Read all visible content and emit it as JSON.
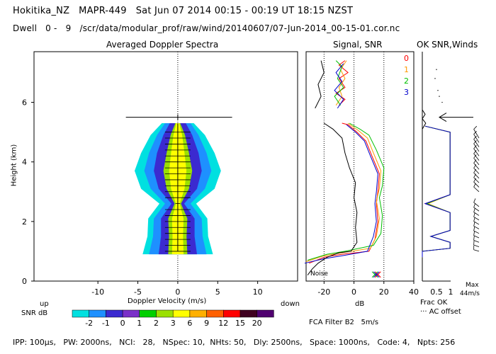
{
  "header": {
    "line1": "Hokitika_NZ   MAPR-449   Sat Jun 07 2014 00:15 - 00:19 UT 18:15 NZST",
    "line2": "Dwell   0 -   9   /scr/data/modular_prof/raw/wind/20140607/07-Jun-2014_00-15-01.cor.nc"
  },
  "footer": {
    "params": "IPP: 100μs,   PW: 2000ns,   NCI:   28,   NSpec: 10,  NHts: 50,   Dly: 2500ns,   Space: 1000ns,   Code: 4,   Npts: 256",
    "filter": "FCA Filter B2   5m/s"
  },
  "chart_data": [
    {
      "type": "heatmap",
      "title": "Averaged Doppler Spectra",
      "xlabel": "Doppler Velocity (m/s)",
      "ylabel": "Height (km)",
      "xlim": [
        -18,
        15
      ],
      "ylim": [
        0,
        7.7
      ],
      "xticks": [
        -10,
        -5,
        0,
        5,
        10
      ],
      "yticks": [
        0,
        2,
        4,
        6
      ],
      "x_side_labels": {
        "left": "up",
        "right": "down"
      },
      "top_height_marker_km": 5.5,
      "spectral_width_profile": [
        {
          "h": 0.9,
          "w": [
            1.2,
            2.4,
            3.6,
            4.4
          ]
        },
        {
          "h": 1.5,
          "w": [
            1.1,
            2.1,
            3.1,
            3.8
          ]
        },
        {
          "h": 2.1,
          "w": [
            1.2,
            2.1,
            3.0,
            3.7
          ]
        },
        {
          "h": 2.6,
          "w": [
            0.4,
            0.8,
            1.6,
            2.3
          ]
        },
        {
          "h": 3.1,
          "w": [
            1.4,
            2.4,
            3.4,
            4.6
          ]
        },
        {
          "h": 3.7,
          "w": [
            1.8,
            3.0,
            4.2,
            5.4
          ]
        },
        {
          "h": 4.3,
          "w": [
            1.4,
            2.6,
            3.6,
            4.6
          ]
        },
        {
          "h": 4.9,
          "w": [
            0.9,
            1.8,
            2.6,
            3.4
          ]
        },
        {
          "h": 5.3,
          "w": [
            0.3,
            1.0,
            1.6,
            2.0
          ]
        }
      ],
      "colorbar": {
        "label": "SNR dB",
        "ticks": [
          "-2",
          "-1",
          "0",
          "1",
          "2",
          "3",
          "6",
          "9",
          "12",
          "15",
          "20"
        ],
        "colors": [
          "#00e0e0",
          "#1e90ff",
          "#3b2ad0",
          "#7a30c8",
          "#00d000",
          "#9be000",
          "#ffff00",
          "#ffb000",
          "#ff6000",
          "#ff0000",
          "#400020",
          "#500070"
        ]
      }
    },
    {
      "type": "line",
      "title": "Signal, SNR",
      "xlabel": "dB",
      "xlim": [
        -32,
        40
      ],
      "ylim": [
        0,
        7.7
      ],
      "xticks": [
        -20,
        0,
        20,
        40
      ],
      "dotted_refs": [
        -20,
        0,
        20
      ],
      "noise_label": "Noise",
      "legend": [
        "0",
        "1",
        "2",
        "3"
      ],
      "series": [
        {
          "name": "0",
          "color": "#ff0000",
          "points": [
            [
              -30,
              0.6
            ],
            [
              -20,
              0.8
            ],
            [
              -8,
              0.9
            ],
            [
              10,
              1.0
            ],
            [
              14,
              1.4
            ],
            [
              16,
              2.0
            ],
            [
              15,
              2.6
            ],
            [
              16,
              3.0
            ],
            [
              17,
              3.6
            ],
            [
              12,
              4.2
            ],
            [
              8,
              4.7
            ],
            [
              2,
              5.0
            ],
            [
              -4,
              5.25
            ],
            [
              -8,
              5.3
            ]
          ],
          "upper": [
            [
              -10,
              5.9
            ],
            [
              -6,
              6.1
            ],
            [
              -12,
              6.3
            ],
            [
              -6,
              6.5
            ],
            [
              -10,
              6.8
            ],
            [
              -4,
              7.0
            ],
            [
              -10,
              7.25
            ],
            [
              -6,
              7.4
            ]
          ]
        },
        {
          "name": "1",
          "color": "#ff9900",
          "points": [
            [
              -32,
              0.65
            ],
            [
              -20,
              0.85
            ],
            [
              -8,
              0.95
            ],
            [
              11,
              1.1
            ],
            [
              15,
              1.5
            ],
            [
              17,
              2.1
            ],
            [
              15,
              2.7
            ],
            [
              17,
              3.1
            ],
            [
              18,
              3.7
            ],
            [
              13,
              4.3
            ],
            [
              9,
              4.8
            ],
            [
              3,
              5.05
            ],
            [
              -4,
              5.3
            ]
          ],
          "upper": [
            [
              -12,
              5.9
            ],
            [
              -8,
              6.2
            ],
            [
              -10,
              6.5
            ],
            [
              -6,
              6.8
            ],
            [
              -9,
              7.1
            ],
            [
              -5,
              7.4
            ]
          ]
        },
        {
          "name": "2",
          "color": "#00c000",
          "points": [
            [
              -31,
              0.7
            ],
            [
              -18,
              0.9
            ],
            [
              -6,
              1.0
            ],
            [
              13,
              1.2
            ],
            [
              18,
              1.6
            ],
            [
              19,
              2.2
            ],
            [
              17,
              2.8
            ],
            [
              19,
              3.2
            ],
            [
              20,
              3.8
            ],
            [
              15,
              4.4
            ],
            [
              10,
              4.9
            ],
            [
              4,
              5.1
            ],
            [
              -3,
              5.3
            ]
          ],
          "upper": [
            [
              -9,
              5.9
            ],
            [
              -13,
              6.2
            ],
            [
              -7,
              6.5
            ],
            [
              -11,
              6.8
            ],
            [
              -8,
              7.2
            ],
            [
              -12,
              7.4
            ]
          ]
        },
        {
          "name": "3",
          "color": "#0000cc",
          "points": [
            [
              -33,
              0.6
            ],
            [
              -20,
              0.75
            ],
            [
              -8,
              0.85
            ],
            [
              9,
              1.0
            ],
            [
              13,
              1.5
            ],
            [
              15,
              2.0
            ],
            [
              14,
              2.6
            ],
            [
              15,
              3.0
            ],
            [
              16,
              3.6
            ],
            [
              11,
              4.2
            ],
            [
              7,
              4.7
            ],
            [
              1,
              5.0
            ],
            [
              -5,
              5.25
            ]
          ],
          "upper": [
            [
              -11,
              5.8
            ],
            [
              -7,
              6.1
            ],
            [
              -13,
              6.4
            ],
            [
              -8,
              6.7
            ],
            [
              -12,
              7.0
            ],
            [
              -7,
              7.3
            ]
          ]
        },
        {
          "name": "Noise",
          "color": "#000000",
          "points": [
            [
              -31,
              0.2
            ],
            [
              -28,
              0.4
            ],
            [
              -24,
              0.6
            ],
            [
              -18,
              0.8
            ],
            [
              -10,
              0.95
            ],
            [
              -2,
              1.0
            ],
            [
              2,
              1.3
            ],
            [
              1,
              1.8
            ],
            [
              2,
              2.3
            ],
            [
              0,
              2.8
            ],
            [
              1,
              3.3
            ],
            [
              -3,
              3.8
            ],
            [
              -6,
              4.3
            ],
            [
              -8,
              4.8
            ],
            [
              -14,
              5.1
            ],
            [
              -20,
              5.3
            ]
          ],
          "upper": [
            [
              -26,
              5.8
            ],
            [
              -22,
              6.2
            ],
            [
              -24,
              6.6
            ],
            [
              -20,
              7.0
            ],
            [
              -22,
              7.4
            ]
          ]
        }
      ],
      "clutter_markers": [
        {
          "x": 14,
          "h": 0.22,
          "color": "#00c000"
        },
        {
          "x": 16,
          "h": 0.22,
          "color": "#ff0000"
        },
        {
          "x": 15,
          "h": 0.22,
          "color": "#0000cc"
        }
      ]
    },
    {
      "type": "line",
      "title": "OK SNR,Winds",
      "xlabel": "Frac OK",
      "xlim": [
        0,
        1
      ],
      "ylim": [
        0,
        7.7
      ],
      "xtick_labels": [
        "0.5",
        "1"
      ],
      "note": "AC offset",
      "max_wind_label": "Max",
      "max_wind_value": "44m/s",
      "top_arrow_height_km": 5.5,
      "series": [
        {
          "name": "0",
          "color": "#ff0000",
          "points": [
            [
              0,
              0.8
            ],
            [
              0,
              1.0
            ],
            [
              0.98,
              1.1
            ],
            [
              0.98,
              1.3
            ],
            [
              0.3,
              1.5
            ],
            [
              0.98,
              1.7
            ],
            [
              0.98,
              2.3
            ],
            [
              0.1,
              2.6
            ],
            [
              0.98,
              2.9
            ],
            [
              0.98,
              5.0
            ],
            [
              0.1,
              5.2
            ]
          ]
        },
        {
          "name": "1",
          "color": "#ff9900",
          "points": [
            [
              0,
              0.8
            ],
            [
              0,
              1.0
            ],
            [
              0.98,
              1.1
            ],
            [
              0.98,
              1.3
            ],
            [
              0.3,
              1.5
            ],
            [
              0.98,
              1.7
            ],
            [
              0.98,
              2.3
            ],
            [
              0.2,
              2.6
            ],
            [
              0.98,
              2.9
            ],
            [
              0.98,
              5.0
            ],
            [
              0.1,
              5.2
            ]
          ]
        },
        {
          "name": "2",
          "color": "#00c000",
          "points": [
            [
              0,
              0.8
            ],
            [
              0,
              1.0
            ],
            [
              0.98,
              1.1
            ],
            [
              0.98,
              1.3
            ],
            [
              0.3,
              1.5
            ],
            [
              0.98,
              1.7
            ],
            [
              0.98,
              2.3
            ],
            [
              0.15,
              2.6
            ],
            [
              0.98,
              2.9
            ],
            [
              0.98,
              5.0
            ],
            [
              0.1,
              5.2
            ]
          ]
        },
        {
          "name": "3",
          "color": "#0000cc",
          "points": [
            [
              0,
              0.8
            ],
            [
              0,
              1.0
            ],
            [
              0.98,
              1.1
            ],
            [
              0.98,
              1.3
            ],
            [
              0.3,
              1.5
            ],
            [
              0.98,
              1.7
            ],
            [
              0.98,
              2.3
            ],
            [
              0.1,
              2.6
            ],
            [
              0.98,
              2.9
            ],
            [
              0.98,
              5.0
            ],
            [
              0.1,
              5.2
            ]
          ]
        },
        {
          "name": "Noise",
          "color": "#000000",
          "points": [
            [
              0,
              5.1
            ],
            [
              0.12,
              5.3
            ],
            [
              0,
              5.45
            ],
            [
              0.1,
              5.6
            ],
            [
              0,
              5.75
            ]
          ]
        }
      ],
      "wind_barbs": [
        {
          "h": 1.0,
          "u": -1,
          "v": 0.3
        },
        {
          "h": 1.15,
          "u": -1,
          "v": 0.35
        },
        {
          "h": 1.3,
          "u": -1,
          "v": 0.4
        },
        {
          "h": 1.45,
          "u": -1,
          "v": 0.45
        },
        {
          "h": 1.6,
          "u": -1,
          "v": 0.5
        },
        {
          "h": 1.75,
          "u": -1,
          "v": 0.55
        },
        {
          "h": 1.9,
          "u": -1,
          "v": 0.6
        },
        {
          "h": 2.05,
          "u": -1,
          "v": 0.6
        },
        {
          "h": 2.2,
          "u": -1,
          "v": 0.65
        },
        {
          "h": 2.35,
          "u": -1,
          "v": 0.7
        },
        {
          "h": 2.5,
          "u": -1,
          "v": 0.8
        },
        {
          "h": 3.0,
          "u": -1,
          "v": 0.9
        },
        {
          "h": 3.15,
          "u": -1,
          "v": 1.0
        },
        {
          "h": 3.3,
          "u": -1,
          "v": 1.0
        },
        {
          "h": 3.45,
          "u": -1,
          "v": 1.05
        },
        {
          "h": 3.6,
          "u": -1,
          "v": 1.1
        },
        {
          "h": 3.75,
          "u": -1,
          "v": 1.2
        },
        {
          "h": 3.9,
          "u": -1,
          "v": 1.3
        },
        {
          "h": 4.05,
          "u": -1,
          "v": 1.3
        },
        {
          "h": 4.2,
          "u": -1,
          "v": 1.4
        },
        {
          "h": 4.35,
          "u": -1,
          "v": 1.5
        },
        {
          "h": 4.5,
          "u": -1,
          "v": 1.5
        },
        {
          "h": 4.65,
          "u": -1,
          "v": 1.6
        },
        {
          "h": 4.8,
          "u": -1,
          "v": 1.7
        }
      ]
    }
  ]
}
